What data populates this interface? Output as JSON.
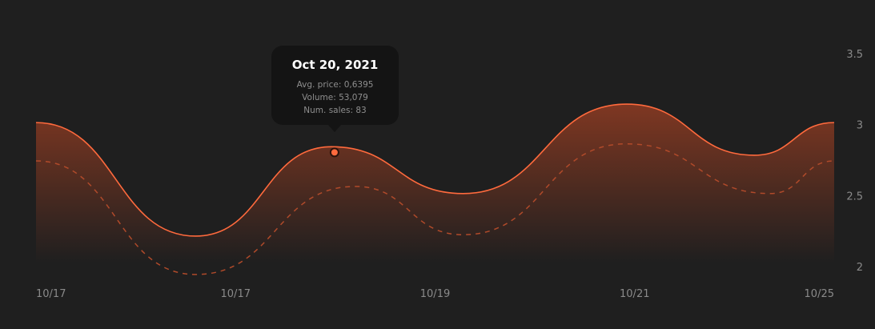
{
  "chart_data": {
    "type": "area",
    "x_labels": [
      "10/17",
      "10/17",
      "10/19",
      "10/21",
      "10/25"
    ],
    "y_ticks": [
      "3.5",
      "3",
      "2.5",
      "2"
    ],
    "ylim": [
      2,
      3.5
    ],
    "series": [
      {
        "style": "solid-area",
        "color": "#ff6a3d",
        "x": [
          0,
          0.2,
          0.37,
          0.535,
          0.74,
          0.9,
          1
        ],
        "y": [
          3.02,
          2.22,
          2.85,
          2.52,
          3.15,
          2.79,
          3.02
        ]
      },
      {
        "style": "dashed",
        "color": "#b04a2a",
        "x": [
          0,
          0.2,
          0.4,
          0.535,
          0.74,
          0.92,
          1
        ],
        "y": [
          2.75,
          1.95,
          2.57,
          2.23,
          2.87,
          2.52,
          2.75
        ]
      }
    ],
    "tooltip": {
      "date": "Oct 20, 2021",
      "avg_price": "Avg. price: 0,6395",
      "volume": "Volume: 53,079",
      "num_sales": "Num. sales: 83"
    },
    "marker": {
      "x": 0.374,
      "y": 2.81,
      "color": "#ff6a3d"
    }
  }
}
